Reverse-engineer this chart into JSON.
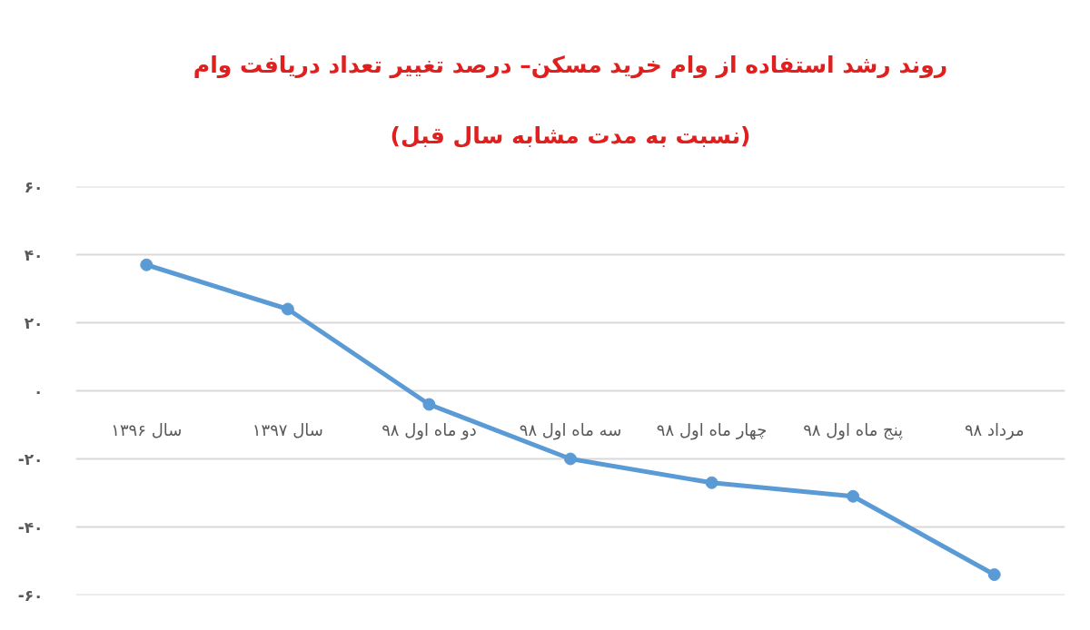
{
  "chart_data": {
    "type": "line",
    "title": "روند رشد استفاده از وام خرید مسکن– درصد تغییر تعداد دریافت وام",
    "subtitle": "(نسبت به مدت مشابه سال قبل)",
    "categories": [
      "سال ۱۳۹۶",
      "سال ۱۳۹۷",
      "دو ماه اول ۹۸",
      "سه ماه اول ۹۸",
      "چهار ماه اول ۹۸",
      "پنج ماه اول ۹۸",
      "مرداد ۹۸"
    ],
    "series": [
      {
        "color": "#5b9bd5",
        "values": [
          37,
          24,
          -4,
          -20,
          -27,
          -31,
          -54
        ]
      }
    ],
    "ylim": [
      -60,
      60
    ],
    "yticks": [
      {
        "value": 60,
        "label": "۶۰"
      },
      {
        "value": 40,
        "label": "۴۰"
      },
      {
        "value": 20,
        "label": "۲۰"
      },
      {
        "value": 0,
        "label": "۰"
      },
      {
        "value": -20,
        "label": "-۲۰"
      },
      {
        "value": -40,
        "label": "-۴۰"
      },
      {
        "value": -60,
        "label": "-۶۰"
      }
    ],
    "grid": "y",
    "marker": "circle",
    "line_style": "solid"
  }
}
